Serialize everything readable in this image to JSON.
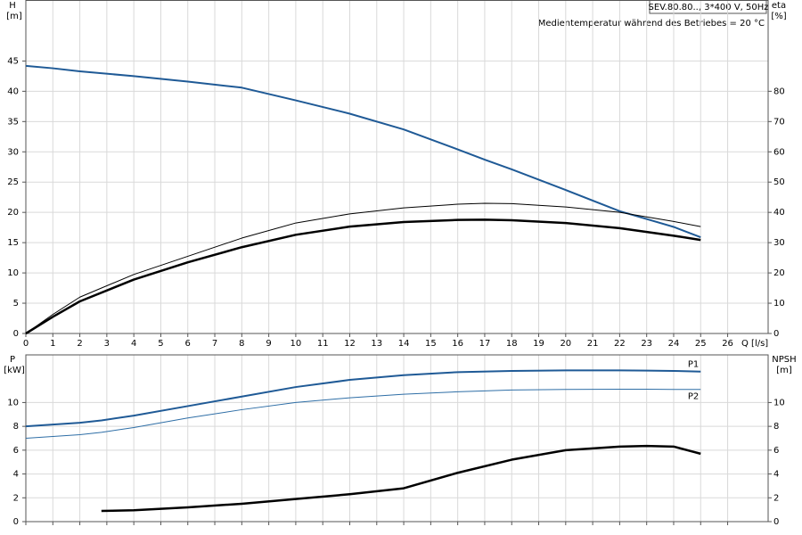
{
  "chart_data": [
    {
      "type": "line",
      "title": "SEV.80.80.., 3*400 V, 50Hz",
      "subtitle": "Medientemperatur während des Betriebes = 20 °C",
      "ylabel": {
        "name": "H",
        "unit": "[m]"
      },
      "y2label": {
        "name": "eta",
        "unit": "[%]"
      },
      "xlabel": "Q [l/s]",
      "x": [
        0,
        1,
        2,
        4,
        6,
        8,
        10,
        12,
        14,
        16,
        17,
        18,
        20,
        22,
        24,
        25
      ],
      "series": [
        {
          "color": "#1f5a96",
          "linewidth": 2,
          "values": [
            44.2,
            43.8,
            43.3,
            42.5,
            41.6,
            40.6,
            38.5,
            36.3,
            33.7,
            30.4,
            28.7,
            27.1,
            23.7,
            20.2,
            17.6,
            15.9
          ]
        },
        {
          "color": "#000000",
          "linewidth": 1,
          "axis": "y2",
          "values": [
            0,
            6.3,
            12,
            19.5,
            25.5,
            31.5,
            36.5,
            39.5,
            41.5,
            42.7,
            43,
            42.9,
            41.8,
            40,
            37,
            35.3
          ]
        },
        {
          "color": "#000000",
          "linewidth": 2.5,
          "axis": "y2",
          "values": [
            0,
            5.5,
            10.6,
            17.8,
            23.5,
            28.5,
            32.6,
            35.3,
            36.8,
            37.5,
            37.6,
            37.4,
            36.5,
            34.8,
            32.3,
            30.9
          ]
        }
      ],
      "xlim": [
        0,
        27.5
      ],
      "xticks": [
        0,
        1,
        2,
        3,
        4,
        5,
        6,
        7,
        8,
        9,
        10,
        11,
        12,
        13,
        14,
        15,
        16,
        17,
        18,
        19,
        20,
        21,
        22,
        23,
        24,
        25,
        26
      ],
      "ylim": [
        0,
        55
      ],
      "yticks": [
        0,
        5,
        10,
        15,
        20,
        25,
        30,
        35,
        40,
        45
      ],
      "y2lim": [
        0,
        110
      ],
      "y2ticks": [
        0,
        10,
        20,
        30,
        40,
        50,
        60,
        70,
        80
      ],
      "grid": true
    },
    {
      "type": "line",
      "ylabel": {
        "name": "P",
        "unit": "[kW]"
      },
      "y2label": {
        "name": "NPSH",
        "unit": "[m]"
      },
      "x": [
        0,
        2,
        2.8,
        4,
        6,
        8,
        10,
        12,
        14,
        16,
        18,
        20,
        22,
        23,
        24,
        25
      ],
      "series": [
        {
          "name": "P1",
          "color": "#1f5a96",
          "linewidth": 2,
          "values": [
            8.0,
            8.3,
            8.5,
            8.9,
            9.7,
            10.5,
            11.3,
            11.9,
            12.3,
            12.55,
            12.65,
            12.7,
            12.7,
            12.68,
            12.65,
            12.6
          ]
        },
        {
          "name": "P2",
          "color": "#2e6ea6",
          "linewidth": 1,
          "values": [
            7.0,
            7.3,
            7.5,
            7.9,
            8.7,
            9.4,
            10.0,
            10.4,
            10.7,
            10.9,
            11.05,
            11.1,
            11.12,
            11.12,
            11.1,
            11.1
          ]
        },
        {
          "color": "#000000",
          "linewidth": 2.5,
          "axis": "y2",
          "values": [
            null,
            null,
            0.9,
            0.95,
            1.2,
            1.5,
            1.9,
            2.3,
            2.8,
            4.1,
            5.2,
            6.0,
            6.3,
            6.35,
            6.3,
            5.7
          ]
        }
      ],
      "xlim": [
        0,
        27.5
      ],
      "xticks": [
        0,
        1,
        2,
        3,
        4,
        5,
        6,
        7,
        8,
        9,
        10,
        11,
        12,
        13,
        14,
        15,
        16,
        17,
        18,
        19,
        20,
        21,
        22,
        23,
        24,
        25,
        26
      ],
      "ylim": [
        0,
        14
      ],
      "yticks": [
        0,
        2,
        4,
        6,
        8,
        10
      ],
      "y2lim": [
        0,
        14
      ],
      "y2ticks": [
        0,
        2,
        4,
        6,
        8,
        10
      ],
      "grid": true
    }
  ]
}
